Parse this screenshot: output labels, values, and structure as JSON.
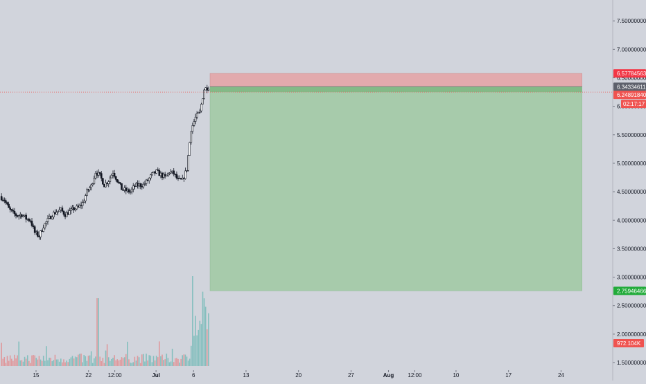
{
  "chart_data": {
    "type": "candlestick",
    "y_axis": {
      "scale": "linear",
      "range": [
        1.44,
        7.66
      ],
      "ticks": [
        "7.50000000",
        "7.00000000",
        "6.50000000",
        "6.00000000",
        "5.50000000",
        "5.00000000",
        "4.50000000",
        "4.00000000",
        "3.50000000",
        "3.00000000",
        "2.50000000",
        "2.00000000",
        "1.50000000"
      ],
      "tick_values": [
        7.5,
        7.0,
        6.5,
        6.0,
        5.5,
        5.0,
        4.5,
        4.0,
        3.5,
        3.0,
        2.5,
        2.0,
        1.5
      ]
    },
    "x_axis": {
      "ticks": [
        "15",
        "22",
        "12:00",
        "Jul",
        "6",
        "13",
        "20",
        "27",
        "Aug",
        "12:00",
        "10",
        "17",
        "24"
      ],
      "bold": [
        false,
        false,
        false,
        true,
        false,
        false,
        false,
        false,
        true,
        false,
        false,
        false,
        false
      ],
      "day_offsets": [
        0,
        7,
        10.5,
        16,
        21,
        28,
        35,
        42,
        47,
        50.5,
        56,
        63,
        70
      ]
    },
    "price_path": [
      4.42,
      4.36,
      4.2,
      4.12,
      4.08,
      4.1,
      4.03,
      4.0,
      3.78,
      3.72,
      3.9,
      4.0,
      4.1,
      4.15,
      4.18,
      4.1,
      4.15,
      4.2,
      4.22,
      4.3,
      4.5,
      4.6,
      4.85,
      4.78,
      4.62,
      4.7,
      4.85,
      4.7,
      4.55,
      4.52,
      4.5,
      4.6,
      4.62,
      4.62,
      4.7,
      4.8,
      4.85,
      4.8,
      4.75,
      4.85,
      4.82,
      4.7,
      4.7,
      4.9,
      5.6,
      5.8,
      5.9,
      6.3,
      6.34
    ],
    "position": {
      "entry": 6.34334611,
      "target": 2.75946466,
      "stop": 6.57784563,
      "start_day": 23.2,
      "end_day": 72.8
    },
    "price_labels": {
      "stop": "6.57784563",
      "entry": "6.34334611",
      "current": "6.24891840",
      "countdown": "02:17:17",
      "target": "2.75946466",
      "volume": "972.104K"
    },
    "colors": {
      "background": "#d1d4dc",
      "up": "#26a69a",
      "down": "#ef5350",
      "profit_zone": "#a7cbab",
      "loss_zone": "#e2aaad",
      "candle_body": "#131722"
    }
  }
}
